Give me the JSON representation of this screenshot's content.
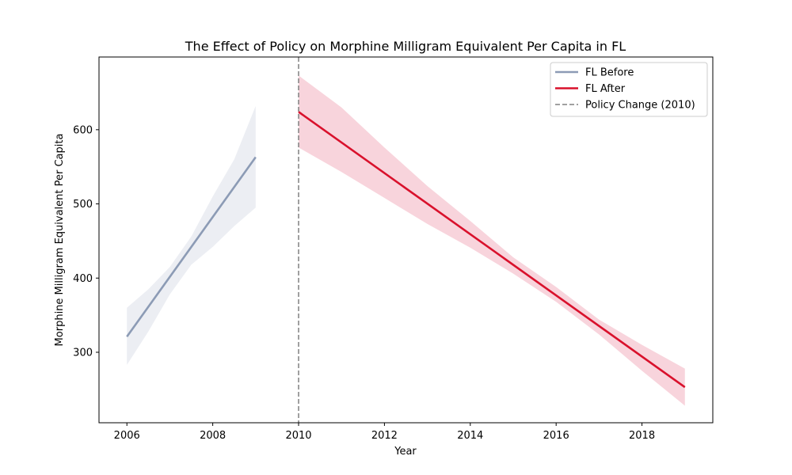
{
  "chart_data": {
    "type": "line",
    "title": "The Effect of Policy on Morphine Milligram Equivalent Per Capita in FL",
    "xlabel": "Year",
    "ylabel": "Morphine Milligram Equivalent Per Capita",
    "xlim": [
      2005.35,
      2019.65
    ],
    "ylim": [
      205,
      698
    ],
    "x_ticks": [
      2006,
      2008,
      2010,
      2012,
      2014,
      2016,
      2018
    ],
    "y_ticks": [
      300,
      400,
      500,
      600
    ],
    "grid": false,
    "legend_position": "top-right",
    "series": [
      {
        "name": "FL Before",
        "color": "#8c9bb5",
        "band_color": "#eceef3",
        "x": [
          2006,
          2009
        ],
        "y": [
          321,
          563
        ],
        "band": {
          "x": [
            2006,
            2006.5,
            2007,
            2007.5,
            2008,
            2008.5,
            2009
          ],
          "lower": [
            283,
            328,
            378,
            418,
            442,
            470,
            495
          ],
          "upper": [
            360,
            385,
            415,
            456,
            510,
            560,
            632
          ]
        }
      },
      {
        "name": "FL After",
        "color": "#d9112c",
        "band_color": "#f8d4dc",
        "x": [
          2010,
          2019
        ],
        "y": [
          624,
          253
        ],
        "band": {
          "x": [
            2010,
            2011,
            2012,
            2013,
            2014,
            2015,
            2016,
            2017,
            2018,
            2019
          ],
          "lower": [
            576,
            543,
            508,
            473,
            441,
            406,
            368,
            324,
            275,
            228
          ],
          "upper": [
            673,
            630,
            576,
            524,
            477,
            428,
            388,
            344,
            310,
            278
          ]
        }
      }
    ],
    "reference_lines": [
      {
        "name": "Policy Change (2010)",
        "x": 2010,
        "color": "#808080",
        "style": "dashed"
      }
    ]
  }
}
